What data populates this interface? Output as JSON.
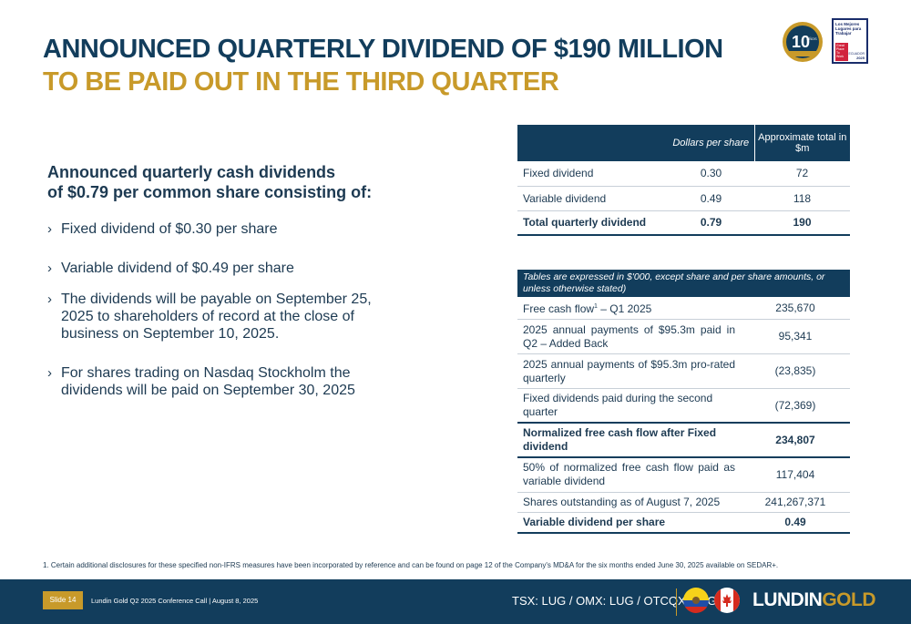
{
  "title": {
    "line1": "ANNOUNCED QUARTERLY DIVIDEND OF $190 MILLION",
    "line2": "TO BE PAID OUT IN THE THIRD QUARTER"
  },
  "badges": {
    "anniversary": "10",
    "anniversary_sub": "AÑOS",
    "gptw_text": "Los Mejores Lugares para Trabajar",
    "gptw_red": "Great Place To Work",
    "gptw_country": "ECUADOR",
    "gptw_year": "2025"
  },
  "subheading": {
    "line1": "Announced quarterly cash dividends",
    "line2": "of $0.79 per common share consisting of:"
  },
  "bullets": [
    "Fixed dividend of $0.30 per share",
    "Variable dividend of $0.49 per share",
    "The dividends will be payable on September 25, 2025 to shareholders of record at the close of business on September 10, 2025.",
    "For shares trading on Nasdaq Stockholm the dividends will be paid on September 30, 2025"
  ],
  "dividend_table": {
    "headers": [
      "",
      "Dollars per share",
      "Approximate total in $m"
    ],
    "rows": [
      {
        "label": "Fixed dividend",
        "per_share": "0.30",
        "total": "72"
      },
      {
        "label": "Variable dividend",
        "per_share": "0.49",
        "total": "118"
      },
      {
        "label": "Total quarterly dividend",
        "per_share": "0.79",
        "total": "190"
      }
    ]
  },
  "fcf_table": {
    "header": "Tables are expressed in $'000, except share and per share amounts, or unless otherwise stated)",
    "rows": [
      {
        "label": "Free cash flow",
        "sup": "1",
        "label_suffix": " – Q1 2025",
        "value": "235,670"
      },
      {
        "label": "2025 annual payments of $95.3m paid in Q2 – Added Back",
        "value": "95,341"
      },
      {
        "label": "2025 annual payments of $95.3m pro-rated quarterly",
        "value": "(23,835)"
      },
      {
        "label": "Fixed dividends paid during the second quarter",
        "value": "(72,369)"
      },
      {
        "label": "Normalized free cash flow after Fixed dividend",
        "value": "234,807"
      },
      {
        "label": "50% of normalized free cash flow paid as variable dividend",
        "value": "117,404"
      },
      {
        "label": "Shares outstanding as of August 7, 2025",
        "value": "241,267,371"
      },
      {
        "label": "Variable dividend per share",
        "value": "0.49"
      }
    ]
  },
  "footnote": "1.   Certain additional disclosures for these specified non-IFRS measures have been incorporated by reference and can be found on page 12 of the Company's MD&A for the six months ended June 30, 2025 available on SEDAR+.",
  "footer": {
    "slide": "Slide 14",
    "conference": "Lundin Gold Q2 2025 Conference Call | August 8, 2025",
    "ticker": "TSX: LUG / OMX: LUG / OTCQX: LUGDF",
    "logo_part1": "LUNDIN",
    "logo_part2": "GOLD"
  },
  "colors": {
    "navy": "#123d5c",
    "gold": "#c89a2a"
  }
}
